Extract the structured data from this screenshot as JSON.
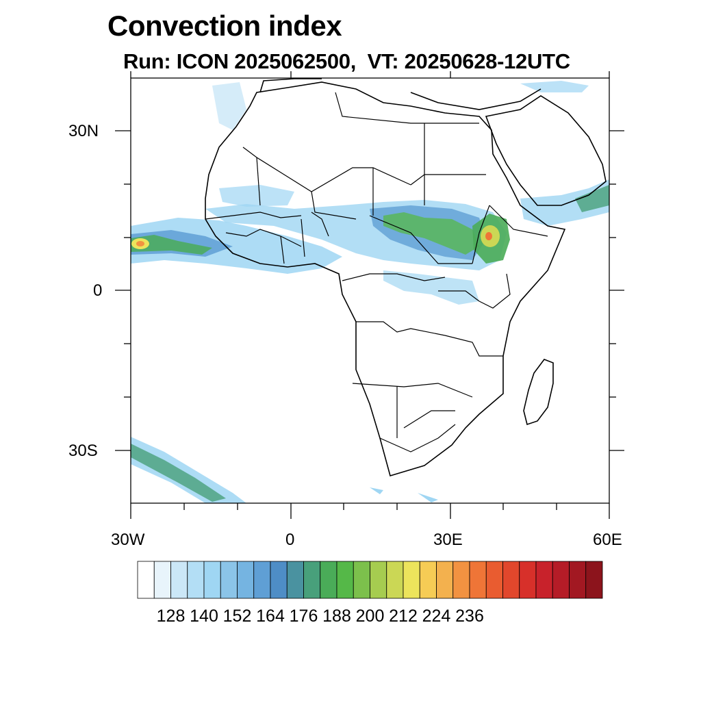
{
  "title": "Convection index",
  "subtitle": "Run: ICON 2025062500,  VT: 20250628-12UTC",
  "map": {
    "region": "Africa",
    "lon_range": [
      -30,
      60
    ],
    "lat_range": [
      -40,
      40
    ],
    "lon_ticks": [
      "30W",
      "0",
      "30E",
      "60E"
    ],
    "lat_ticks": [
      "30N",
      "0",
      "30S"
    ]
  },
  "colorbar": {
    "labels": [
      "128",
      "140",
      "152",
      "164",
      "176",
      "188",
      "200",
      "212",
      "224",
      "236"
    ],
    "colors": [
      "#ffffff",
      "#e8f4fb",
      "#cbe7f7",
      "#b3def5",
      "#9fd6f3",
      "#8bc4e8",
      "#75b4e1",
      "#5f9fd5",
      "#4e8dc6",
      "#4a92a0",
      "#48a07b",
      "#4aac58",
      "#55b848",
      "#7cc04c",
      "#a6cc50",
      "#cbd755",
      "#ece45c",
      "#f6cc55",
      "#f3b14e",
      "#f29241",
      "#ef7537",
      "#e95c30",
      "#e1472c",
      "#d7302a",
      "#c8222b",
      "#b51c27",
      "#a21822",
      "#8c141c"
    ]
  }
}
